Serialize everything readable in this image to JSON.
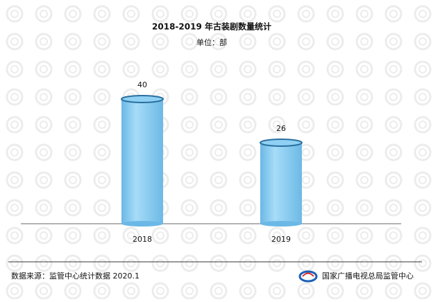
{
  "chart_data": {
    "type": "bar",
    "title": "2018-2019 年古装剧数量统计",
    "subtitle": "单位：部",
    "categories": [
      "2018",
      "2019"
    ],
    "values": [
      40,
      26
    ],
    "color": "#8fd0f4",
    "source": "数据来源：监管中心统计数据 2020.1",
    "logo_text": "国家广播电视总局监管中心"
  }
}
